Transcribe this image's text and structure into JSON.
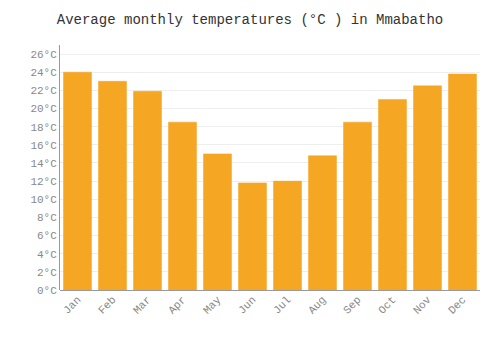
{
  "chart_data": {
    "type": "bar",
    "title": "Average monthly temperatures (°C ) in Mmabatho",
    "categories": [
      "Jan",
      "Feb",
      "Mar",
      "Apr",
      "May",
      "Jun",
      "Jul",
      "Aug",
      "Sep",
      "Oct",
      "Nov",
      "Dec"
    ],
    "values": [
      24.0,
      23.0,
      21.9,
      18.5,
      15.0,
      11.8,
      12.0,
      14.8,
      18.5,
      21.0,
      22.5,
      23.8
    ],
    "color": "#F5A623",
    "ylim": [
      0,
      27
    ],
    "yticks": [
      {
        "value": 0,
        "label": "0°C"
      },
      {
        "value": 2,
        "label": "2°C"
      },
      {
        "value": 4,
        "label": "4°C"
      },
      {
        "value": 6,
        "label": "6°C"
      },
      {
        "value": 8,
        "label": "8°C"
      },
      {
        "value": 10,
        "label": "10°C"
      },
      {
        "value": 12,
        "label": "12°C"
      },
      {
        "value": 14,
        "label": "14°C"
      },
      {
        "value": 16,
        "label": "16°C"
      },
      {
        "value": 18,
        "label": "18°C"
      },
      {
        "value": 20,
        "label": "20°C"
      },
      {
        "value": 22,
        "label": "22°C"
      },
      {
        "value": 24,
        "label": "24°C"
      },
      {
        "value": 26,
        "label": "26°C"
      }
    ],
    "grid": true
  }
}
